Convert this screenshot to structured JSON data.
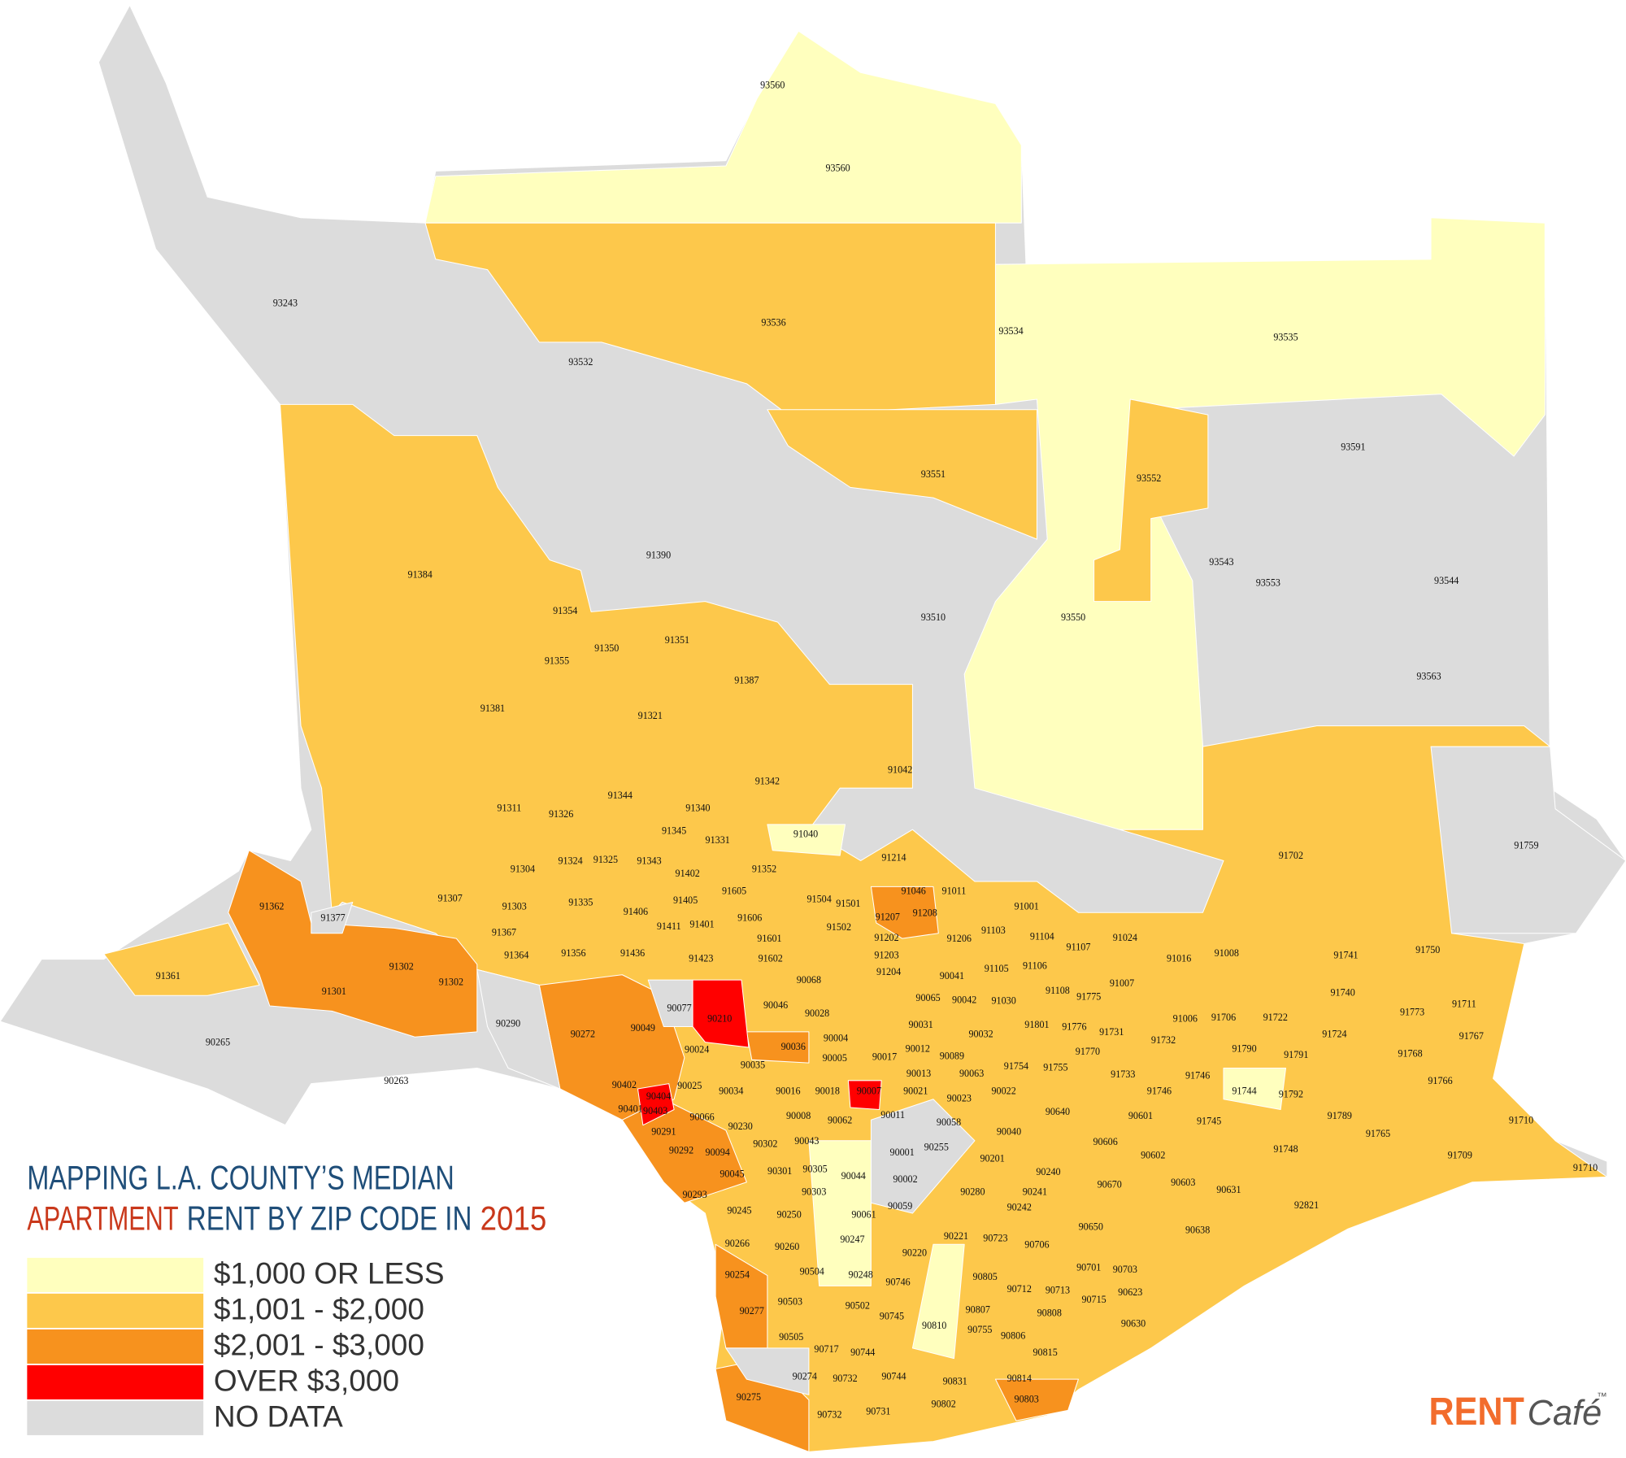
{
  "title": {
    "line1": "MAPPING L.A. COUNTY’S MEDIAN",
    "line2_a": "APARTMENT",
    "line2_b": "RENT BY ZIP CODE IN",
    "line2_c": "2015"
  },
  "legend": [
    {
      "label": "$1,000 OR LESS",
      "color": "#ffffbe"
    },
    {
      "label": "$1,001 - $2,000",
      "color": "#fdc84b"
    },
    {
      "label": "$2,001 - $3,000",
      "color": "#f7921e"
    },
    {
      "label": "OVER $3,000",
      "color": "#ff0000"
    },
    {
      "label": "NO DATA",
      "color": "#dcdcdc"
    }
  ],
  "logo": {
    "brand": "RENT",
    "script": "Café",
    "mark": "™"
  },
  "map": {
    "zip_labels": [
      "93560",
      "93560",
      "93243",
      "93536",
      "93534",
      "93535",
      "93532",
      "93591",
      "93551",
      "93552",
      "91390",
      "93543",
      "93553",
      "93544",
      "91384",
      "93510",
      "93550",
      "91354",
      "91350",
      "91351",
      "91355",
      "91387",
      "93563",
      "91381",
      "91321",
      "91042",
      "91342",
      "91344",
      "91340",
      "91311",
      "91326",
      "91345",
      "91331",
      "91040",
      "91759",
      "91702",
      "91214",
      "91304",
      "91324",
      "91325",
      "91343",
      "91402",
      "91352",
      "91307",
      "91303",
      "91335",
      "91405",
      "91605",
      "91504",
      "91501",
      "91046",
      "91011",
      "91001",
      "91362",
      "91377",
      "91406",
      "91411",
      "91401",
      "91606",
      "91502",
      "91207",
      "91208",
      "91206",
      "91103",
      "91104",
      "91107",
      "91024",
      "91367",
      "91601",
      "91202",
      "91741",
      "91750",
      "91008",
      "91016",
      "91361",
      "91302",
      "91302",
      "91364",
      "91356",
      "91436",
      "91423",
      "91602",
      "91203",
      "91204",
      "91105",
      "91106",
      "90068",
      "90041",
      "91007",
      "91108",
      "91775",
      "90065",
      "90042",
      "91030",
      "91740",
      "91711",
      "91301",
      "90290",
      "90077",
      "90210",
      "90046",
      "90028",
      "91006",
      "91706",
      "91722",
      "91773",
      "91767",
      "91724",
      "90265",
      "90272",
      "90049",
      "91801",
      "91776",
      "91731",
      "91732",
      "91790",
      "91791",
      "91768",
      "90004",
      "90036",
      "90031",
      "90032",
      "90024",
      "90035",
      "90005",
      "90017",
      "90012",
      "90089",
      "91754",
      "91755",
      "91770",
      "90263",
      "90063",
      "90013",
      "91733",
      "91746",
      "91766",
      "90402",
      "90025",
      "90034",
      "90016",
      "90018",
      "90007",
      "90021",
      "90022",
      "91746",
      "91744",
      "91792",
      "90404",
      "90403",
      "90401",
      "90066",
      "90023",
      "90640",
      "90008",
      "90062",
      "90011",
      "90058",
      "90601",
      "90291",
      "90230",
      "90040",
      "91745",
      "91789",
      "91710",
      "90043",
      "90302",
      "90606",
      "90292",
      "90094",
      "90001",
      "90255",
      "90201",
      "90602",
      "91748",
      "91765",
      "91709",
      "91710",
      "90045",
      "90301",
      "90305",
      "90044",
      "90002",
      "90240",
      "90670",
      "90603",
      "90241",
      "90631",
      "90293",
      "90303",
      "90280",
      "90059",
      "90242",
      "92821",
      "90245",
      "90250",
      "90061",
      "90650",
      "90638",
      "90247",
      "90221",
      "90723",
      "90706",
      "90266",
      "90260",
      "90220",
      "90701",
      "90703",
      "90504",
      "90248",
      "90746",
      "90805",
      "90254",
      "90712",
      "90713",
      "90623",
      "90503",
      "90502",
      "90745",
      "90807",
      "90715",
      "90808",
      "90277",
      "90810",
      "90755",
      "90630",
      "90806",
      "90505",
      "90717",
      "90744",
      "90815",
      "90274",
      "90732",
      "90744",
      "90831",
      "90814",
      "90275",
      "90803",
      "90732",
      "90731",
      "90802"
    ]
  }
}
